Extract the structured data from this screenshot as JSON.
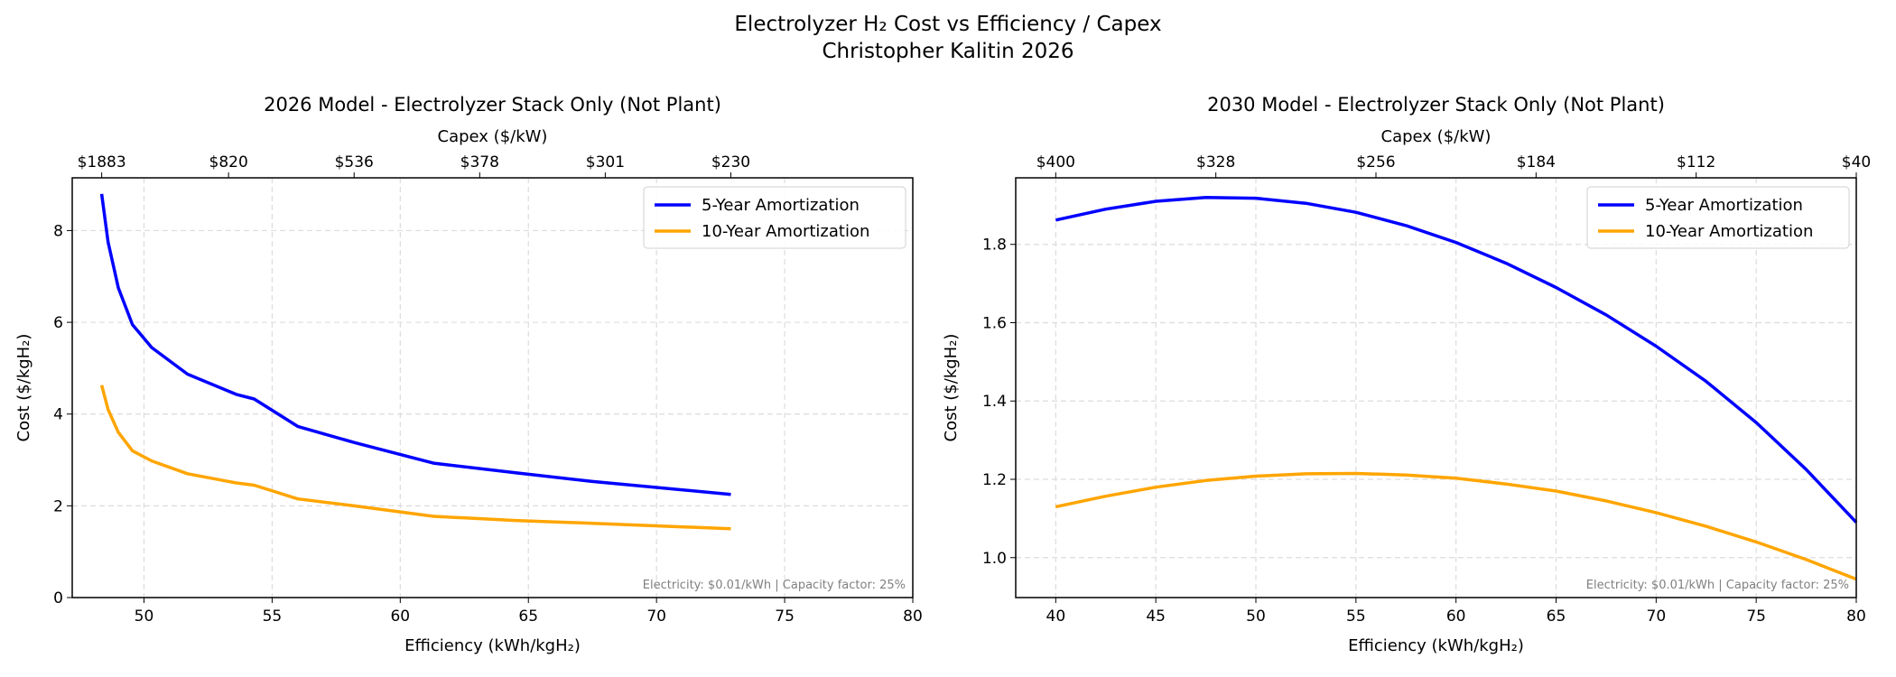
{
  "figure": {
    "title_line1": "Electrolyzer H₂ Cost vs Efficiency / Capex",
    "title_line2": "Christopher Kalitin 2026"
  },
  "chart_data": [
    {
      "type": "line",
      "title": "2026 Model - Electrolyzer Stack Only (Not Plant)",
      "xlabel": "Efficiency (kWh/kgH₂)",
      "ylabel": "Cost ($/kgH₂)",
      "top_xlabel": "Capex ($/kW)",
      "xlim": [
        47.2,
        80
      ],
      "ylim": [
        0,
        9.15
      ],
      "xticks": [
        50,
        55,
        60,
        65,
        70,
        75,
        80
      ],
      "yticks": [
        0,
        2,
        4,
        6,
        8
      ],
      "top_ticks": [
        {
          "x": 48.35,
          "label": "$1883"
        },
        {
          "x": 53.3,
          "label": "$820"
        },
        {
          "x": 58.2,
          "label": "$536"
        },
        {
          "x": 63.1,
          "label": "$378"
        },
        {
          "x": 68.0,
          "label": "$301"
        },
        {
          "x": 72.9,
          "label": "$230"
        }
      ],
      "grid": true,
      "legend_position": "top-right",
      "annotation": "Electricity: $0.01/kWh  |  Capacity factor: 25%",
      "x": [
        48.35,
        48.6,
        49.0,
        49.55,
        50.3,
        51.7,
        53.6,
        54.3,
        56.0,
        58.2,
        61.3,
        64.5,
        67.5,
        72.9
      ],
      "series": [
        {
          "name": "5-Year Amortization",
          "color": "#0000ff",
          "values": [
            8.8,
            7.75,
            6.75,
            5.95,
            5.45,
            4.87,
            4.43,
            4.33,
            3.73,
            3.38,
            2.93,
            2.72,
            2.53,
            2.25
          ]
        },
        {
          "name": "10-Year Amortization",
          "color": "#ffa500",
          "values": [
            4.63,
            4.1,
            3.6,
            3.2,
            2.98,
            2.7,
            2.5,
            2.45,
            2.15,
            2.0,
            1.77,
            1.68,
            1.62,
            1.5
          ]
        }
      ]
    },
    {
      "type": "line",
      "title": "2030 Model - Electrolyzer Stack Only (Not Plant)",
      "xlabel": "Efficiency (kWh/kgH₂)",
      "ylabel": "Cost ($/kgH₂)",
      "top_xlabel": "Capex ($/kW)",
      "xlim": [
        38,
        80
      ],
      "ylim": [
        0.898,
        1.97
      ],
      "xticks": [
        40,
        45,
        50,
        55,
        60,
        65,
        70,
        75,
        80
      ],
      "yticks": [
        1.0,
        1.2,
        1.4,
        1.6,
        1.8
      ],
      "top_ticks": [
        {
          "x": 40,
          "label": "$400"
        },
        {
          "x": 48,
          "label": "$328"
        },
        {
          "x": 56,
          "label": "$256"
        },
        {
          "x": 64,
          "label": "$184"
        },
        {
          "x": 72,
          "label": "$112"
        },
        {
          "x": 80,
          "label": "$40"
        }
      ],
      "grid": true,
      "legend_position": "top-right",
      "annotation": "Electricity: $0.01/kWh  |  Capacity factor: 25%",
      "x": [
        40,
        42.5,
        45,
        47.5,
        50,
        52.5,
        55,
        57.5,
        60,
        62.5,
        65,
        67.5,
        70,
        72.5,
        75,
        77.5,
        80
      ],
      "series": [
        {
          "name": "5-Year Amortization",
          "color": "#0000ff",
          "values": [
            1.862,
            1.89,
            1.91,
            1.92,
            1.918,
            1.905,
            1.882,
            1.848,
            1.805,
            1.752,
            1.69,
            1.62,
            1.54,
            1.45,
            1.345,
            1.225,
            1.09
          ]
        },
        {
          "name": "10-Year Amortization",
          "color": "#ffa500",
          "values": [
            1.13,
            1.157,
            1.18,
            1.197,
            1.208,
            1.214,
            1.215,
            1.211,
            1.203,
            1.188,
            1.17,
            1.145,
            1.115,
            1.08,
            1.04,
            0.995,
            0.945
          ]
        }
      ]
    }
  ]
}
